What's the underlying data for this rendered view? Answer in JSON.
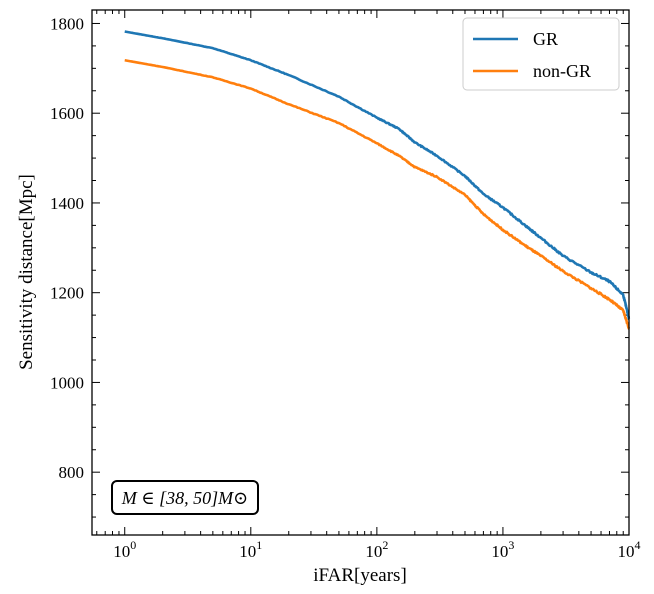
{
  "chart_data": {
    "type": "line",
    "title": "",
    "xlabel": "iFAR[years]",
    "ylabel": "Sensitivity distance[Mpc]",
    "xscale": "log",
    "xlim": [
      0.55,
      10000
    ],
    "ylim": [
      660,
      1830
    ],
    "xticks": [
      {
        "value": 1,
        "base": "10",
        "exp": "0"
      },
      {
        "value": 10,
        "base": "10",
        "exp": "1"
      },
      {
        "value": 100,
        "base": "10",
        "exp": "2"
      },
      {
        "value": 1000,
        "base": "10",
        "exp": "3"
      },
      {
        "value": 10000,
        "base": "10",
        "exp": "4"
      }
    ],
    "yticks": [
      800,
      1000,
      1200,
      1400,
      1600,
      1800
    ],
    "legend_position": "top-right",
    "annotation": "M ∈ [38, 50]M⊙",
    "series": [
      {
        "name": "GR",
        "color": "#1f77b4",
        "points": [
          [
            1,
            1782
          ],
          [
            2,
            1767
          ],
          [
            5,
            1745
          ],
          [
            10,
            1718
          ],
          [
            20,
            1685
          ],
          [
            50,
            1637
          ],
          [
            100,
            1590
          ],
          [
            150,
            1565
          ],
          [
            200,
            1535
          ],
          [
            300,
            1505
          ],
          [
            500,
            1460
          ],
          [
            700,
            1420
          ],
          [
            1000,
            1390
          ],
          [
            1500,
            1350
          ],
          [
            2000,
            1322
          ],
          [
            3000,
            1282
          ],
          [
            5000,
            1245
          ],
          [
            7000,
            1225
          ],
          [
            9000,
            1195
          ],
          [
            10000,
            1142
          ]
        ]
      },
      {
        "name": "non-GR",
        "color": "#ff7f0e",
        "points": [
          [
            1,
            1718
          ],
          [
            2,
            1703
          ],
          [
            5,
            1680
          ],
          [
            10,
            1655
          ],
          [
            20,
            1620
          ],
          [
            50,
            1578
          ],
          [
            100,
            1533
          ],
          [
            150,
            1505
          ],
          [
            200,
            1480
          ],
          [
            300,
            1458
          ],
          [
            500,
            1418
          ],
          [
            700,
            1375
          ],
          [
            1000,
            1340
          ],
          [
            1500,
            1305
          ],
          [
            2000,
            1282
          ],
          [
            3000,
            1248
          ],
          [
            5000,
            1210
          ],
          [
            7000,
            1185
          ],
          [
            9000,
            1160
          ],
          [
            10000,
            1120
          ]
        ]
      }
    ]
  }
}
